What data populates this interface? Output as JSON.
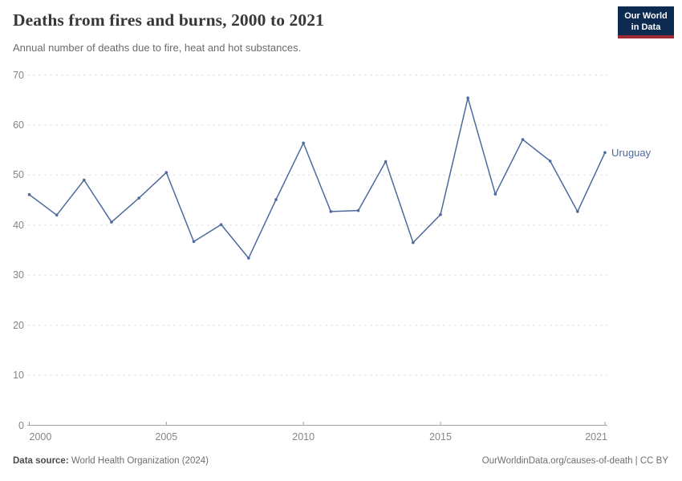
{
  "logo": {
    "line1": "Our World",
    "line2": "in Data"
  },
  "chart_data": {
    "type": "line",
    "title": "Deaths from fires and burns, 2000 to 2021",
    "subtitle": "Annual number of deaths due to fire, heat and hot substances.",
    "entity": "Uruguay",
    "x": [
      2000,
      2001,
      2002,
      2003,
      2004,
      2005,
      2006,
      2007,
      2008,
      2009,
      2010,
      2011,
      2012,
      2013,
      2014,
      2015,
      2016,
      2017,
      2018,
      2019,
      2020,
      2021
    ],
    "series": [
      {
        "name": "Uruguay",
        "color": "#4c6a9c",
        "values": [
          46.1,
          42,
          49,
          40.6,
          45.4,
          50.5,
          36.7,
          40.1,
          33.4,
          45.1,
          56.4,
          42.7,
          42.9,
          52.7,
          36.5,
          42.1,
          65.4,
          46.2,
          57.1,
          52.8,
          42.7,
          54.5
        ]
      }
    ],
    "xlabel": "",
    "ylabel": "",
    "xlim": [
      2000,
      2021
    ],
    "ylim": [
      0,
      70
    ],
    "y_ticks": [
      0,
      10,
      20,
      30,
      40,
      50,
      60,
      70
    ],
    "x_tick_years": [
      2000,
      2005,
      2010,
      2015,
      2021
    ],
    "x_tick_labels": [
      "2000",
      "2005",
      "2010",
      "2015",
      "2021"
    ],
    "grid": "horizontal-dashed",
    "legend_position": "end-of-line"
  },
  "footer": {
    "source_label": "Data source:",
    "source_text": " World Health Organization (2024)",
    "attribution": "OurWorldinData.org/causes-of-death | CC BY"
  },
  "colors": {
    "line": "#4c6a9c",
    "logo_bg": "#0d2b50",
    "logo_accent": "#9e2a33",
    "gridline": "#e0e0e0",
    "axis": "#a3a3a3",
    "tick_text": "#858585"
  }
}
